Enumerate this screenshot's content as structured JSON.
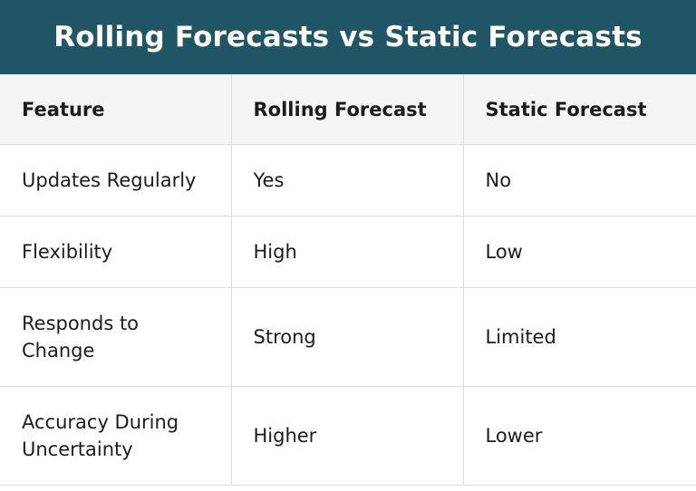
{
  "header": {
    "title": "Rolling Forecasts vs Static Forecasts"
  },
  "table": {
    "columns": [
      "Feature",
      "Rolling Forecast",
      "Static Forecast"
    ],
    "rows": [
      [
        "Updates Regularly",
        "Yes",
        "No"
      ],
      [
        "Flexibility",
        "High",
        "Low"
      ],
      [
        "Responds to\nChange",
        "Strong",
        "Limited"
      ],
      [
        "Accuracy During\nUncertainty",
        "Higher",
        "Lower"
      ]
    ]
  }
}
